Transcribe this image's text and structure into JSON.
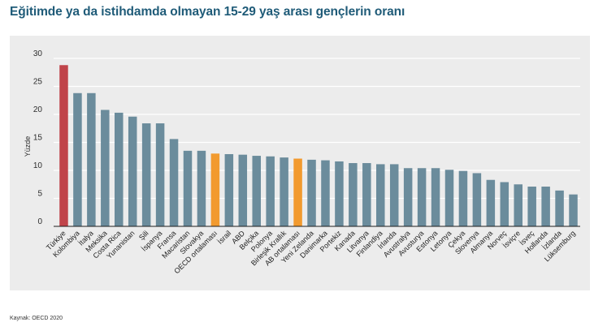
{
  "title": "Eğitimde ya da istihdamda olmayan 15-29 yaş arası gençlerin oranı",
  "source": "Kaynak: OECD 2020",
  "colors": {
    "default_bar": "#6b8c9c",
    "highlight_red": "#c0444a",
    "highlight_orange": "#f29a2e",
    "grid": "#ffffff",
    "panel": "#ececec"
  },
  "chart_data": {
    "type": "bar",
    "title": "Eğitimde ya da istihdamda olmayan 15-29 yaş arası gençlerin oranı",
    "xlabel": "",
    "ylabel": "Yüzde",
    "ylim": [
      0,
      30
    ],
    "yticks": [
      0,
      5,
      10,
      15,
      20,
      25,
      30
    ],
    "grid": true,
    "categories": [
      "Türkiye",
      "Kolombiya",
      "İtalya",
      "Meksika",
      "Costa Rica",
      "Yunanistan",
      "Şili",
      "İspanya",
      "Fransa",
      "Macaristan",
      "Slovakya",
      "OECD ortalaması",
      "İsrail",
      "ABD",
      "Belçika",
      "Polonya",
      "Birleşik Krallık",
      "AB ortalaması",
      "Yeni Zelanda",
      "Danimarka",
      "Portekiz",
      "Kanada",
      "Litvanya",
      "Finlandiya",
      "İrlanda",
      "Avustralya",
      "Avusturya",
      "Estonya",
      "Letonya",
      "Çekya",
      "Slovenya",
      "Almanya",
      "Norveç",
      "İsviçre",
      "İsveç",
      "Hollanda",
      "İzlanda",
      "Lüksemburg"
    ],
    "values": [
      28.8,
      23.8,
      23.8,
      20.8,
      20.3,
      19.6,
      18.4,
      18.4,
      15.6,
      13.5,
      13.5,
      13.0,
      12.9,
      12.8,
      12.6,
      12.5,
      12.3,
      12.1,
      11.9,
      11.8,
      11.6,
      11.3,
      11.3,
      11.1,
      11.1,
      10.4,
      10.4,
      10.4,
      10.1,
      9.9,
      9.5,
      8.3,
      7.9,
      7.5,
      7.1,
      7.1,
      6.4,
      5.7
    ],
    "highlight": {
      "Türkiye": "highlight_red",
      "OECD ortalaması": "highlight_orange",
      "AB ortalaması": "highlight_orange"
    }
  }
}
